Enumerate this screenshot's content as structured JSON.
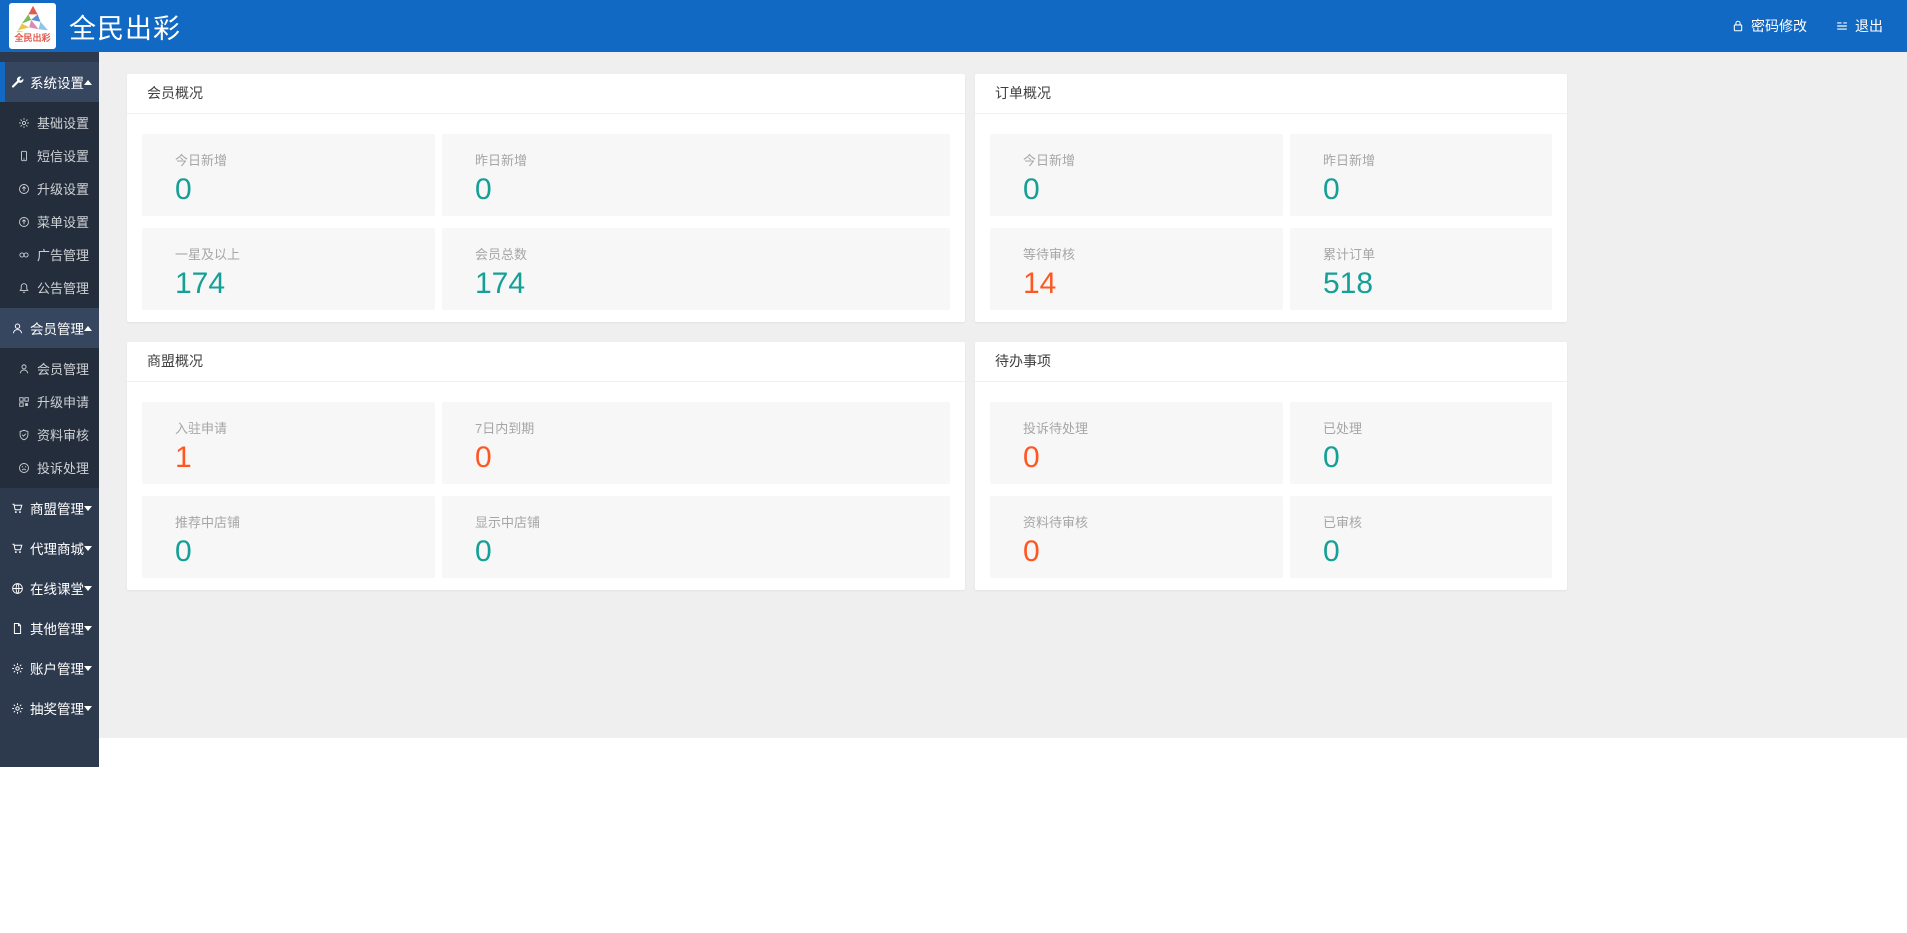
{
  "header": {
    "logo_text": "全民出彩",
    "title": "全民出彩",
    "password_label": "密码修改",
    "logout_label": "退出"
  },
  "sidebar": {
    "groups": [
      {
        "label": "系统设置",
        "name": "system-settings",
        "icon": "wrench-icon",
        "expanded": true,
        "active": true,
        "children": [
          {
            "label": "基础设置",
            "name": "basic-settings",
            "icon": "gear-icon"
          },
          {
            "label": "短信设置",
            "name": "sms-settings",
            "icon": "mobile-icon"
          },
          {
            "label": "升级设置",
            "name": "upgrade-settings",
            "icon": "arrow-up-circle-icon"
          },
          {
            "label": "菜单设置",
            "name": "menu-settings",
            "icon": "arrow-up-circle-icon"
          },
          {
            "label": "广告管理",
            "name": "ad-management",
            "icon": "link-icon"
          },
          {
            "label": "公告管理",
            "name": "announcement-management",
            "icon": "bell-icon"
          }
        ]
      },
      {
        "label": "会员管理",
        "name": "member-management-group",
        "icon": "user-icon",
        "expanded": true,
        "active": false,
        "children": [
          {
            "label": "会员管理",
            "name": "member-management",
            "icon": "user-icon"
          },
          {
            "label": "升级申请",
            "name": "upgrade-application",
            "icon": "grid-icon"
          },
          {
            "label": "资料审核",
            "name": "profile-review",
            "icon": "shield-check-icon"
          },
          {
            "label": "投诉处理",
            "name": "complaint-handling",
            "icon": "sad-face-icon"
          }
        ]
      },
      {
        "label": "商盟管理",
        "name": "alliance-management",
        "icon": "cart-icon",
        "expanded": false,
        "active": false
      },
      {
        "label": "代理商城",
        "name": "agent-mall",
        "icon": "cart-icon",
        "expanded": false,
        "active": false
      },
      {
        "label": "在线课堂",
        "name": "online-classroom",
        "icon": "globe-icon",
        "expanded": false,
        "active": false
      },
      {
        "label": "其他管理",
        "name": "other-management",
        "icon": "file-icon",
        "expanded": false,
        "active": false
      },
      {
        "label": "账户管理",
        "name": "account-management",
        "icon": "gear-icon",
        "expanded": false,
        "active": false
      },
      {
        "label": "抽奖管理",
        "name": "lottery-management",
        "icon": "gear-icon",
        "expanded": false,
        "active": false
      }
    ]
  },
  "cards": [
    {
      "title": "会员概况",
      "name": "member-overview",
      "stats": [
        {
          "label": "今日新增",
          "name": "members-new-today",
          "value": "0",
          "color": "teal"
        },
        {
          "label": "昨日新增",
          "name": "members-new-yesterday",
          "value": "0",
          "color": "teal"
        },
        {
          "label": "一星及以上",
          "name": "one-star-and-above",
          "value": "174",
          "color": "teal"
        },
        {
          "label": "会员总数",
          "name": "total-members",
          "value": "174",
          "color": "teal"
        }
      ]
    },
    {
      "title": "订单概况",
      "name": "order-overview",
      "stats": [
        {
          "label": "今日新增",
          "name": "orders-new-today",
          "value": "0",
          "color": "teal"
        },
        {
          "label": "昨日新增",
          "name": "orders-new-yesterday",
          "value": "0",
          "color": "teal"
        },
        {
          "label": "等待审核",
          "name": "orders-pending-review",
          "value": "14",
          "color": "red"
        },
        {
          "label": "累计订单",
          "name": "total-orders",
          "value": "518",
          "color": "teal"
        }
      ]
    },
    {
      "title": "商盟概况",
      "name": "alliance-overview",
      "stats": [
        {
          "label": "入驻申请",
          "name": "settle-in-applications",
          "value": "1",
          "color": "red"
        },
        {
          "label": "7日内到期",
          "name": "expiring-in-7-days",
          "value": "0",
          "color": "red"
        },
        {
          "label": "推荐中店铺",
          "name": "recommended-shops",
          "value": "0",
          "color": "teal"
        },
        {
          "label": "显示中店铺",
          "name": "displayed-shops",
          "value": "0",
          "color": "teal"
        }
      ]
    },
    {
      "title": "待办事项",
      "name": "todo-items",
      "stats": [
        {
          "label": "投诉待处理",
          "name": "complaints-pending",
          "value": "0",
          "color": "red"
        },
        {
          "label": "已处理",
          "name": "complaints-handled",
          "value": "0",
          "color": "teal"
        },
        {
          "label": "资料待审核",
          "name": "profiles-pending-review",
          "value": "0",
          "color": "red"
        },
        {
          "label": "已审核",
          "name": "profiles-reviewed",
          "value": "0",
          "color": "teal"
        }
      ]
    }
  ],
  "colors": {
    "header_blue": "#1269c3",
    "sidebar_bg": "#2d3a4e",
    "sidebar_submenu_bg": "#232d3c",
    "sidebar_active_bg": "#37465f",
    "page_bg": "#efefef",
    "tile_bg": "#f7f7f7",
    "teal": "#14a096",
    "red": "#ff5722"
  }
}
